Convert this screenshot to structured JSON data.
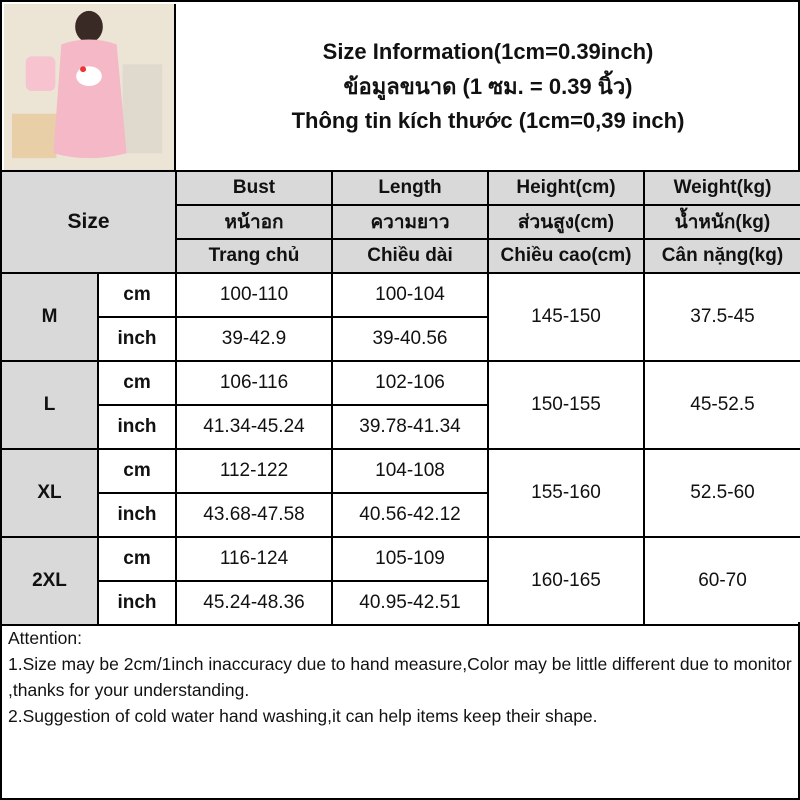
{
  "titles": [
    "Size Information(1cm=0.39inch)",
    "ข้อมูลขนาด (1 ซม. = 0.39 นิ้ว)",
    "Thông tin kích thước (1cm=0,39 inch)"
  ],
  "header": {
    "size": "Size",
    "columns": [
      [
        "Bust",
        "หน้าอก",
        "Trang chủ"
      ],
      [
        "Length",
        "ความยาว",
        "Chiều dài"
      ],
      [
        "Height(cm)",
        "ส่วนสูง(cm)",
        "Chiều cao(cm)"
      ],
      [
        "Weight(kg)",
        "น้ำหนัก(kg)",
        "Cân nặng(kg)"
      ]
    ]
  },
  "rows": [
    {
      "size": "M",
      "cm": {
        "unit": "cm",
        "bust": "100-110",
        "length": "100-104"
      },
      "inch": {
        "unit": "inch",
        "bust": "39-42.9",
        "length": "39-40.56"
      },
      "height": "145-150",
      "weight": "37.5-45"
    },
    {
      "size": "L",
      "cm": {
        "unit": "cm",
        "bust": "106-116",
        "length": "102-106"
      },
      "inch": {
        "unit": "inch",
        "bust": "41.34-45.24",
        "length": "39.78-41.34"
      },
      "height": "150-155",
      "weight": "45-52.5"
    },
    {
      "size": "XL",
      "cm": {
        "unit": "cm",
        "bust": "112-122",
        "length": "104-108"
      },
      "inch": {
        "unit": "inch",
        "bust": "43.68-47.58",
        "length": "40.56-42.12"
      },
      "height": "155-160",
      "weight": "52.5-60"
    },
    {
      "size": "2XL",
      "cm": {
        "unit": "cm",
        "bust": "116-124",
        "length": "105-109"
      },
      "inch": {
        "unit": "inch",
        "bust": "45.24-48.36",
        "length": "40.95-42.51"
      },
      "height": "160-165",
      "weight": "60-70"
    }
  ],
  "notes": [
    "Attention:",
    "1.Size may be 2cm/1inch inaccuracy due to hand measure,Color may be little different due to monitor ,thanks for your understanding.",
    "2.Suggestion of cold water hand washing,it can help items keep their shape."
  ]
}
